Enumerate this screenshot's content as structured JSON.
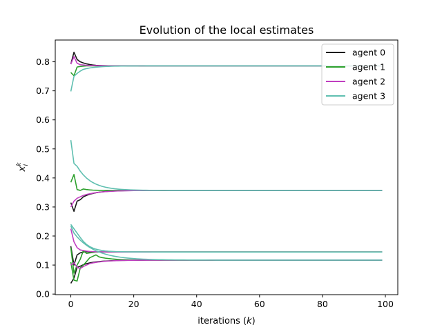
{
  "chart_data": {
    "type": "line",
    "title": "Evolution of the local estimates",
    "xlabel": "iterations (k)",
    "ylabel": "x_i^k",
    "xlim": [
      -4.95,
      103.95
    ],
    "ylim": [
      -0.002,
      0.875
    ],
    "xticks": [
      0,
      20,
      40,
      60,
      80,
      100
    ],
    "yticks": [
      0.0,
      0.1,
      0.2,
      0.3,
      0.4,
      0.5,
      0.6,
      0.7,
      0.8
    ],
    "grid": false,
    "legend_position": "top-right",
    "x_range": [
      0,
      99
    ],
    "series": [
      {
        "name": "agent 0",
        "color": "#1a1a1a",
        "curves": [
          {
            "start": [
              0.792,
              0.833,
              0.808,
              0.8,
              0.796,
              0.793
            ],
            "final": 0.786,
            "rate": 0.65
          },
          {
            "start": [
              0.315,
              0.285,
              0.32,
              0.325,
              0.335,
              0.34
            ],
            "final": 0.357,
            "rate": 0.78
          },
          {
            "start": [
              0.165,
              0.1,
              0.135,
              0.142,
              0.145,
              0.146
            ],
            "final": 0.145,
            "rate": 0.6
          },
          {
            "start": [
              0.037,
              0.055,
              0.092,
              0.096,
              0.101,
              0.105
            ],
            "final": 0.117,
            "rate": 0.8
          }
        ]
      },
      {
        "name": "agent 1",
        "color": "#2ca02c",
        "curves": [
          {
            "start": [
              0.763,
              0.752,
              0.782,
              0.784,
              0.785,
              0.786
            ],
            "final": 0.786,
            "rate": 0.55
          },
          {
            "start": [
              0.385,
              0.412,
              0.36,
              0.357,
              0.362,
              0.36
            ],
            "final": 0.357,
            "rate": 0.6
          },
          {
            "start": [
              0.16,
              0.072,
              0.1,
              0.12,
              0.15,
              0.14,
              0.142,
              0.143,
              0.145
            ],
            "final": 0.145,
            "rate": 0.6
          },
          {
            "start": [
              0.11,
              0.048,
              0.045,
              0.09,
              0.1,
              0.112,
              0.125,
              0.13,
              0.135,
              0.128
            ],
            "final": 0.117,
            "rate": 0.78
          }
        ]
      },
      {
        "name": "agent 2",
        "color": "#c03ec0",
        "curves": [
          {
            "start": [
              0.792,
              0.818,
              0.795,
              0.79,
              0.789,
              0.788
            ],
            "final": 0.786,
            "rate": 0.65
          },
          {
            "start": [
              0.3,
              0.32,
              0.33,
              0.335,
              0.34,
              0.343
            ],
            "final": 0.357,
            "rate": 0.82
          },
          {
            "start": [
              0.225,
              0.18,
              0.16,
              0.152,
              0.15,
              0.148
            ],
            "final": 0.145,
            "rate": 0.62
          },
          {
            "start": [
              0.1,
              0.108,
              0.092,
              0.088,
              0.095,
              0.1,
              0.105
            ],
            "final": 0.117,
            "rate": 0.8
          }
        ]
      },
      {
        "name": "agent 3",
        "color": "#5fbfb0",
        "curves": [
          {
            "start": [
              0.698,
              0.75,
              0.76,
              0.768,
              0.774
            ],
            "final": 0.786,
            "rate": 0.78
          },
          {
            "start": [
              0.53,
              0.45,
              0.44
            ],
            "final": 0.357,
            "rate": 0.8
          },
          {
            "start": [
              0.24,
              0.225,
              0.21,
              0.195
            ],
            "final": 0.145,
            "rate": 0.72
          },
          {
            "start": [
              0.235,
              0.21
            ],
            "final": 0.117,
            "rate": 0.86
          }
        ]
      }
    ]
  }
}
